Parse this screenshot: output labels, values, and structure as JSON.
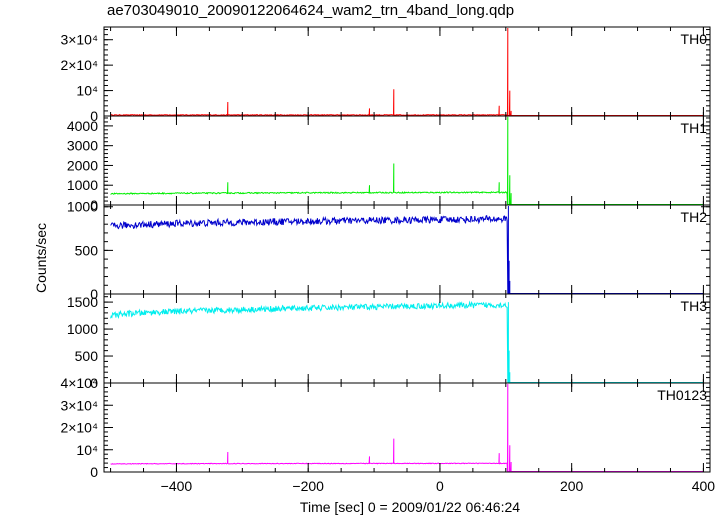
{
  "chart_data": {
    "type": "line",
    "title": "ae703049010_20090122064624_wam2_trn_4band_long.qdp",
    "xlabel": "Time [sec] 0 = 2009/01/22 06:46:24",
    "ylabel": "Counts/sec",
    "xlim": [
      -510,
      410
    ],
    "x_ticks": [
      -400,
      -200,
      0,
      200,
      400
    ],
    "x_tick_labels": [
      "−400",
      "−200",
      "0",
      "200",
      "400"
    ],
    "panels": [
      {
        "name": "TH0",
        "color": "#ff0000",
        "ylim": [
          0,
          35000
        ],
        "y_ticks": [
          0,
          10000,
          20000,
          30000
        ],
        "y_tick_labels": [
          "0",
          "10⁴",
          "2×10⁴",
          "3×10⁴"
        ],
        "baseline_before": 400,
        "noise": 150,
        "baseline_after": 40,
        "drift": 0,
        "spikes": [
          [
            -322,
            5500
          ],
          [
            -107,
            3000
          ],
          [
            -70,
            10500
          ],
          [
            90,
            4000
          ],
          [
            103,
            36000
          ],
          [
            106,
            10000
          ],
          [
            108,
            2000
          ]
        ]
      },
      {
        "name": "TH1",
        "color": "#00ee00",
        "ylim": [
          0,
          4500
        ],
        "y_ticks": [
          0,
          1000,
          2000,
          3000,
          4000
        ],
        "y_tick_labels": [
          "0",
          "1000",
          "2000",
          "3000",
          "4000"
        ],
        "baseline_before": 560,
        "noise": 30,
        "baseline_after": 15,
        "drift": 80,
        "spikes": [
          [
            -322,
            1150
          ],
          [
            -107,
            1000
          ],
          [
            -70,
            2100
          ],
          [
            90,
            1150
          ],
          [
            103,
            4600
          ],
          [
            106,
            1500
          ],
          [
            108,
            600
          ]
        ]
      },
      {
        "name": "TH2",
        "color": "#0000cc",
        "ylim": [
          0,
          1020
        ],
        "y_ticks": [
          0,
          500,
          1000
        ],
        "y_tick_labels": [
          "0",
          "500",
          "1000"
        ],
        "baseline_before": 770,
        "noise": 40,
        "baseline_after": 3,
        "drift": 90,
        "spikes": [
          [
            104,
            1050
          ],
          [
            105,
            380
          ],
          [
            106,
            150
          ]
        ]
      },
      {
        "name": "TH3",
        "color": "#00eeee",
        "ylim": [
          0,
          1650
        ],
        "y_ticks": [
          0,
          500,
          1000,
          1500
        ],
        "y_tick_labels": [
          "0",
          "500",
          "1000",
          "1500"
        ],
        "baseline_before": 1240,
        "noise": 55,
        "baseline_after": 5,
        "drift": 210,
        "spikes": [
          [
            104,
            1500
          ],
          [
            105,
            600
          ],
          [
            106,
            200
          ]
        ]
      },
      {
        "name": "TH0123",
        "color": "#ff00ff",
        "ylim": [
          0,
          40000
        ],
        "y_ticks": [
          0,
          10000,
          20000,
          30000,
          40000
        ],
        "y_tick_labels": [
          "0",
          "10⁴",
          "2×10⁴",
          "3×10⁴",
          "4×10⁴"
        ],
        "baseline_before": 3600,
        "noise": 150,
        "baseline_after": 150,
        "drift": 300,
        "spikes": [
          [
            -322,
            9000
          ],
          [
            -107,
            7000
          ],
          [
            -70,
            15000
          ],
          [
            90,
            8500
          ],
          [
            103,
            41000
          ],
          [
            106,
            12000
          ],
          [
            108,
            4500
          ]
        ]
      }
    ],
    "sample_step": 1,
    "burst_time": 103
  }
}
